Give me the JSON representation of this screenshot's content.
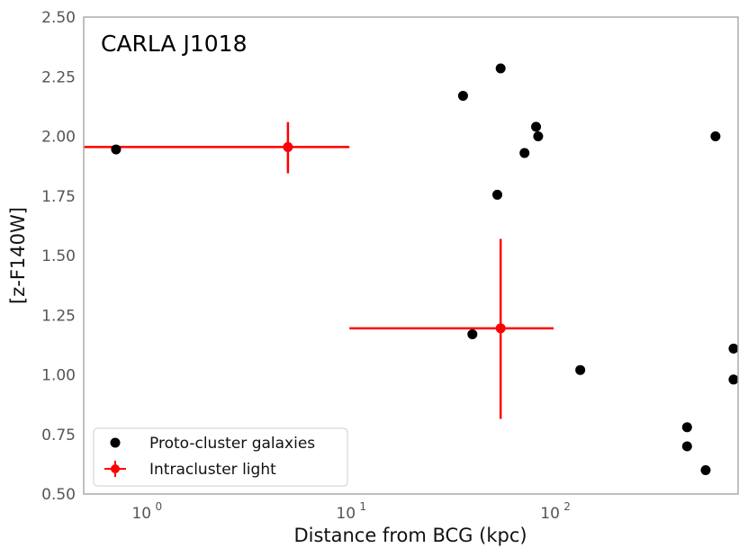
{
  "chart_data": {
    "type": "scatter",
    "title": "CARLA J1018",
    "xlabel": "Distance from BCG (kpc)",
    "ylabel": "[z-F140W]",
    "xscale": "log",
    "xlim": [
      0.5,
      800
    ],
    "ylim": [
      0.5,
      2.5
    ],
    "grid": false,
    "legend_position": "lower-left",
    "x_ticks": [
      {
        "value": 1,
        "base": "10",
        "exp": "0"
      },
      {
        "value": 10,
        "base": "10",
        "exp": "1"
      },
      {
        "value": 100,
        "base": "10",
        "exp": "2"
      }
    ],
    "y_ticks": [
      "0.50",
      "0.75",
      "1.00",
      "1.25",
      "1.50",
      "1.75",
      "2.00",
      "2.25",
      "2.50"
    ],
    "series": [
      {
        "name": "Proto-cluster galaxies",
        "color": "#000000",
        "marker": "circle",
        "points": [
          {
            "x": 0.72,
            "y": 1.945
          },
          {
            "x": 36,
            "y": 2.17
          },
          {
            "x": 55,
            "y": 2.285
          },
          {
            "x": 82,
            "y": 2.04
          },
          {
            "x": 84,
            "y": 2.0
          },
          {
            "x": 72,
            "y": 1.93
          },
          {
            "x": 53,
            "y": 1.755
          },
          {
            "x": 40,
            "y": 1.17
          },
          {
            "x": 135,
            "y": 1.02
          },
          {
            "x": 620,
            "y": 2.0
          },
          {
            "x": 760,
            "y": 1.11
          },
          {
            "x": 760,
            "y": 0.98
          },
          {
            "x": 450,
            "y": 0.78
          },
          {
            "x": 450,
            "y": 0.7
          },
          {
            "x": 555,
            "y": 0.6
          }
        ]
      },
      {
        "name": "Intracluster light",
        "color": "#ff0000",
        "marker": "circle-errorbar",
        "points": [
          {
            "x": 5,
            "y": 1.955,
            "x_err": [
              0.5,
              10
            ],
            "y_err": [
              1.845,
              2.06
            ]
          },
          {
            "x": 55,
            "y": 1.195,
            "x_err": [
              10,
              100
            ],
            "y_err": [
              0.815,
              1.57
            ]
          }
        ]
      }
    ]
  }
}
